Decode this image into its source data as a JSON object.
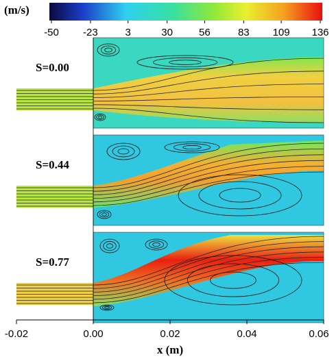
{
  "chart_data": {
    "type": "contour",
    "colorbar": {
      "label": "(m/s)",
      "lim": [
        -50,
        136
      ],
      "ticks": [
        -50,
        -23,
        3,
        30,
        56,
        83,
        109,
        136
      ]
    },
    "panels": [
      {
        "label": "S=0.00"
      },
      {
        "label": "S=0.44"
      },
      {
        "label": "S=0.77"
      }
    ],
    "xlabel": "x (m)",
    "xlim": [
      -0.02,
      0.06
    ],
    "xticks": [
      {
        "value": -0.02,
        "label": "-0.02"
      },
      {
        "value": 0,
        "label": "0.00"
      },
      {
        "value": 0.02,
        "label": "0.02"
      },
      {
        "value": 0.04,
        "label": "0.04"
      },
      {
        "value": 0.06,
        "label": "0.06"
      }
    ]
  }
}
